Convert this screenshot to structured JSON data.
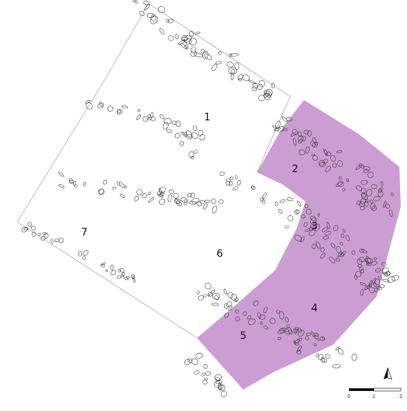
{
  "area_labels": [
    "1",
    "2",
    "3",
    "4",
    "5",
    "6",
    "7"
  ],
  "scale_bar": {
    "labels": [
      "0",
      "1",
      "2"
    ]
  }
}
